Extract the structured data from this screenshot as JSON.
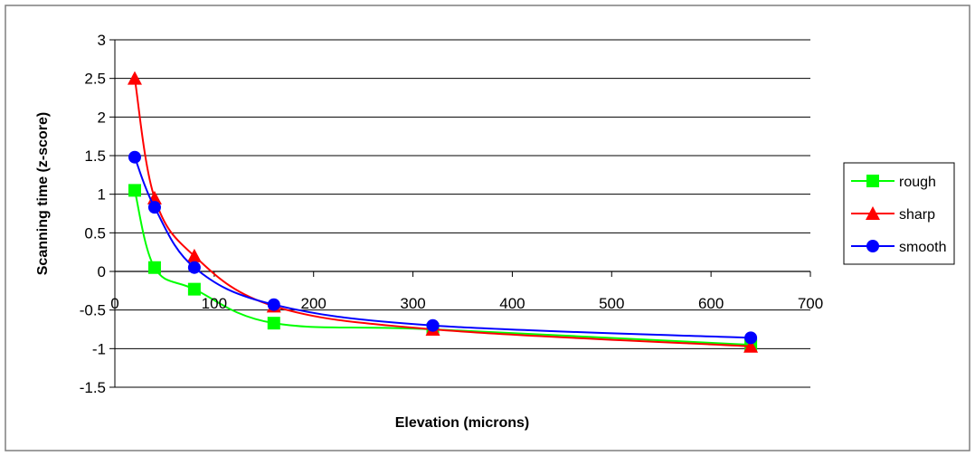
{
  "chart_data": {
    "type": "line",
    "title": "",
    "xlabel": "Elevation (microns)",
    "ylabel": "Scanning time (z-score)",
    "xlim": [
      0,
      700
    ],
    "ylim": [
      -1.5,
      3
    ],
    "x_ticks": [
      0,
      100,
      200,
      300,
      400,
      500,
      600,
      700
    ],
    "y_ticks": [
      3,
      2.5,
      2,
      1.5,
      1,
      0.5,
      0,
      -0.5,
      -1,
      -1.5
    ],
    "x_tick_labels": [
      "0",
      "100",
      "200",
      "300",
      "400",
      "500",
      "600",
      "700"
    ],
    "y_tick_labels": [
      "3",
      "2.5",
      "2",
      "1.5",
      "1",
      "0.5",
      "0",
      "-0.5",
      "-1",
      "-1.5"
    ],
    "grid": true,
    "legend_position": "right",
    "x": [
      20,
      40,
      80,
      160,
      320,
      640
    ],
    "series": [
      {
        "name": "rough",
        "color": "#00ff00",
        "marker": "square",
        "values": [
          1.05,
          0.05,
          -0.23,
          -0.67,
          -0.75,
          -0.95
        ]
      },
      {
        "name": "sharp",
        "color": "#ff0000",
        "marker": "triangle",
        "values": [
          2.5,
          0.95,
          0.2,
          -0.45,
          -0.75,
          -0.97
        ]
      },
      {
        "name": "smooth",
        "color": "#0000ff",
        "marker": "circle",
        "values": [
          1.48,
          0.83,
          0.05,
          -0.43,
          -0.7,
          -0.86
        ]
      }
    ]
  }
}
